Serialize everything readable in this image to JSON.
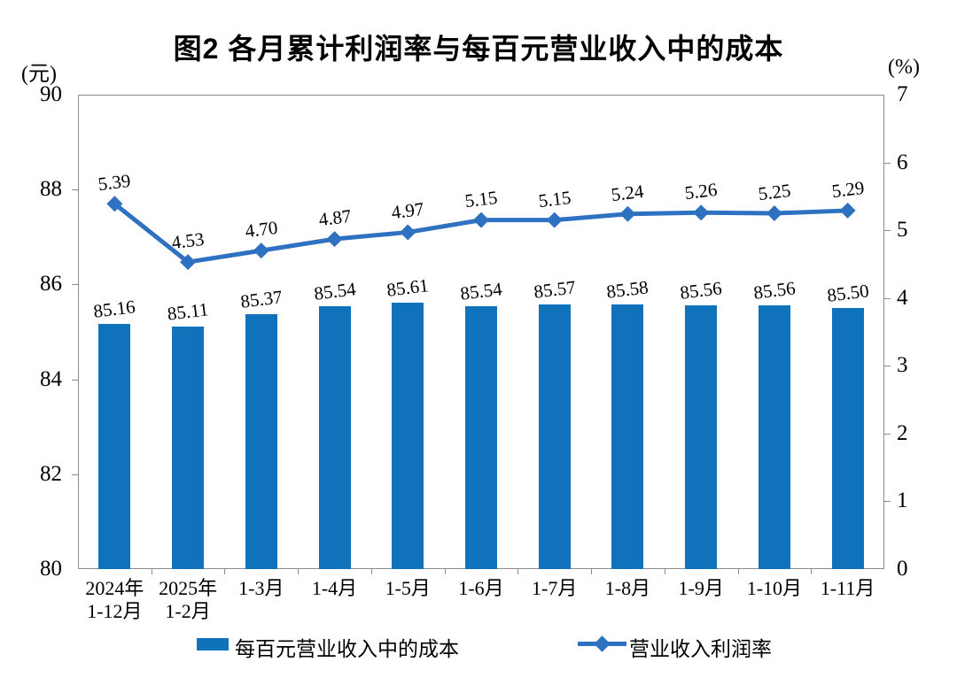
{
  "chart_data": {
    "type": "bar",
    "combo": "bar+line, dual axis",
    "title": "图2 各月累计利润率与每百元营业收入中的成本",
    "left_axis": {
      "unit": "(元)",
      "min": 80,
      "max": 90,
      "ticks": [
        80,
        82,
        84,
        86,
        88,
        90
      ]
    },
    "right_axis": {
      "unit": "(%)",
      "min": 0,
      "max": 7,
      "ticks": [
        0,
        1,
        2,
        3,
        4,
        5,
        6,
        7
      ]
    },
    "categories": [
      [
        "2024年",
        "1-12月"
      ],
      [
        "2025年",
        "1-2月"
      ],
      [
        "1-3月"
      ],
      [
        "1-4月"
      ],
      [
        "1-5月"
      ],
      [
        "1-6月"
      ],
      [
        "1-7月"
      ],
      [
        "1-8月"
      ],
      [
        "1-9月"
      ],
      [
        "1-10月"
      ],
      [
        "1-11月"
      ]
    ],
    "grid": "off",
    "legend_position": "bottom",
    "series": [
      {
        "name": "每百元营业收入中的成本",
        "type": "bar",
        "axis": "left",
        "color": "#1172BC",
        "values": [
          85.16,
          85.11,
          85.37,
          85.54,
          85.61,
          85.54,
          85.57,
          85.58,
          85.56,
          85.56,
          85.5
        ],
        "labels": [
          "85.16",
          "85.11",
          "85.37",
          "85.54",
          "85.61",
          "85.54",
          "85.57",
          "85.58",
          "85.56",
          "85.56",
          "85.50"
        ]
      },
      {
        "name": "营业收入利润率",
        "type": "line",
        "axis": "right",
        "color": "#2F71C1",
        "values": [
          5.39,
          4.53,
          4.7,
          4.87,
          4.97,
          5.15,
          5.15,
          5.24,
          5.26,
          5.25,
          5.29
        ],
        "labels": [
          "5.39",
          "4.53",
          "4.70",
          "4.87",
          "4.97",
          "5.15",
          "5.15",
          "5.24",
          "5.26",
          "5.25",
          "5.29"
        ]
      }
    ]
  }
}
